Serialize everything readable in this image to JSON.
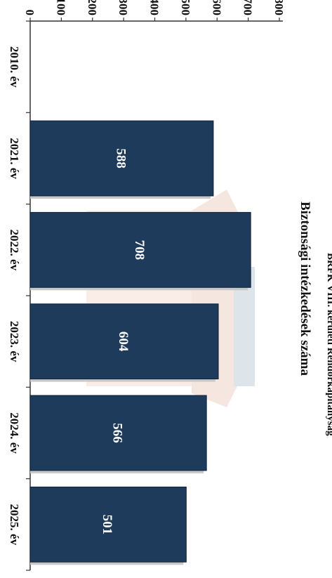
{
  "header_fragment": "BRFK VIII. kerületi Rendőrkapitányság",
  "chart_data": {
    "type": "bar",
    "title": "Biztonsági intézkedések száma",
    "categories": [
      "2010. év",
      "2021. év",
      "2022. év",
      "2023. év",
      "2024. év",
      "2025. év"
    ],
    "values": [
      null,
      588,
      708,
      604,
      566,
      501
    ],
    "value_labels": [
      "",
      "588",
      "708",
      "604",
      "566",
      "501"
    ],
    "ylim": [
      0,
      800
    ],
    "yticks": [
      0,
      100,
      200,
      300,
      400,
      500,
      600,
      700,
      800
    ],
    "xlabel": "",
    "ylabel": "",
    "grid": false,
    "legend": "none"
  },
  "colors": {
    "bar": "#1f3b5c",
    "bar_edge": "#0e2238",
    "bar_shadow": "#c8c8c8",
    "axis": "#333333"
  }
}
